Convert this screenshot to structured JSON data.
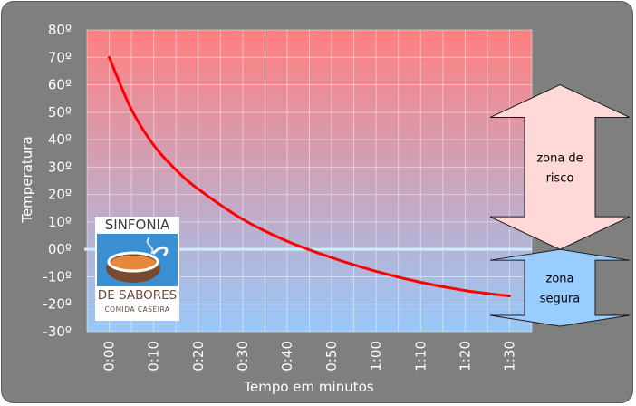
{
  "chart_data": {
    "type": "line",
    "xlabel": "Tempo em minutos",
    "ylabel": "Temperatura",
    "x_ticks": [
      "0:00",
      "0:10",
      "0:20",
      "0:30",
      "0:40",
      "0:50",
      "1:00",
      "1:10",
      "1:20",
      "1:30"
    ],
    "y_ticks": [
      "80º",
      "70º",
      "60º",
      "50º",
      "40º",
      "30º",
      "20º",
      "10º",
      "00º",
      "-10º",
      "-20º",
      "-30º"
    ],
    "ylim": [
      -30,
      80
    ],
    "xlim_minutes": [
      -5,
      95
    ],
    "grid": true,
    "background_gradient": {
      "top": "#ff8080",
      "bottom": "#98c8f8"
    },
    "series": [
      {
        "color": "#ff0000",
        "x_minutes": [
          0,
          5,
          10,
          15,
          20,
          30,
          40,
          50,
          60,
          70,
          80,
          90
        ],
        "values": [
          70,
          51,
          38,
          29,
          22,
          11,
          3,
          -3,
          -8,
          -12,
          -15,
          -17
        ]
      }
    ],
    "reference_line": {
      "value": 0,
      "color": "#c8f0ff"
    },
    "annotations": [
      {
        "label_lines": [
          "zona de",
          "risco"
        ],
        "fill": "#ffd8d8",
        "y_range": [
          0,
          60
        ]
      },
      {
        "label_lines": [
          "zona",
          "segura"
        ],
        "fill": "#99ccff",
        "y_range": [
          -28,
          0
        ]
      }
    ]
  },
  "logo": {
    "line1": "SINFONIA",
    "line2": "DE SABORES",
    "line3": "COMIDA CASEIRA",
    "colors": {
      "sky": "#3a8fd0",
      "pot": "#7a4a2e",
      "soup": "#e8883a",
      "text": "#6b4a3a"
    }
  }
}
